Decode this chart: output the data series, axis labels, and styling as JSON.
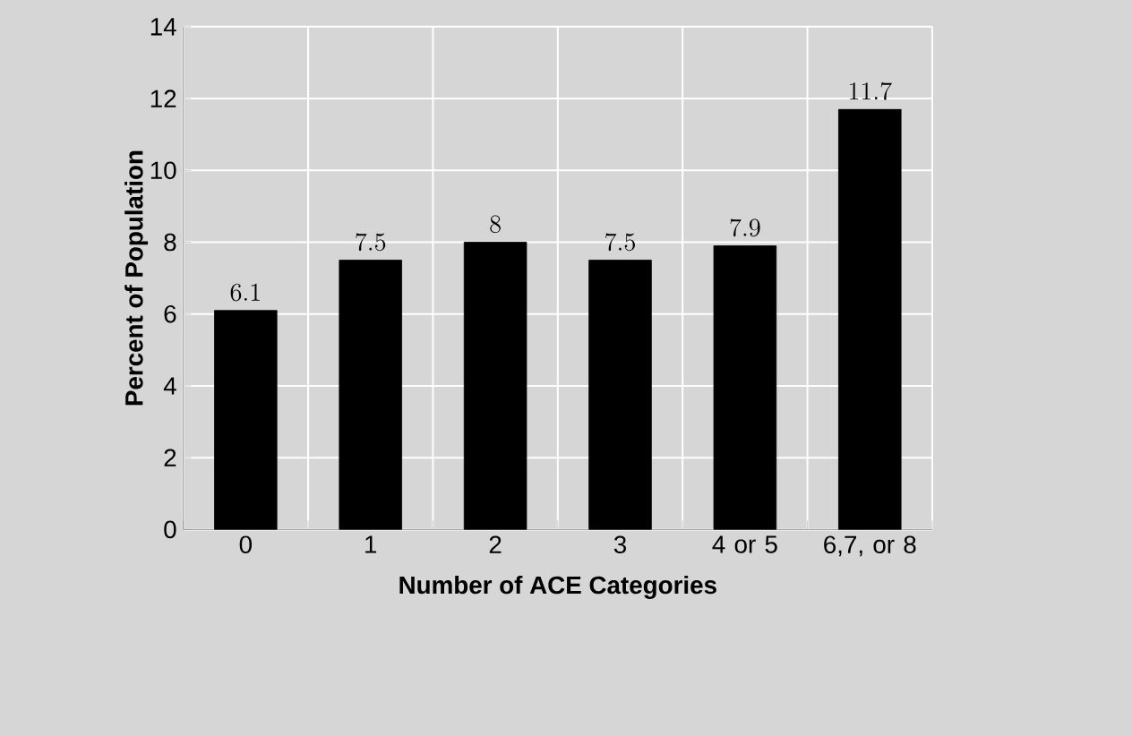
{
  "chart_data": {
    "type": "bar",
    "xlabel": "Number of ACE Categories",
    "ylabel": "Percent of Population",
    "categories": [
      "0",
      "1",
      "2",
      "3",
      "4 or 5",
      "6,7, or 8"
    ],
    "values": [
      6.1,
      7.5,
      8,
      7.5,
      7.9,
      11.7
    ],
    "color": "#000000",
    "ylim": [
      0,
      14
    ],
    "yticks": [
      0,
      2,
      4,
      6,
      8,
      10,
      12,
      14
    ],
    "grid": true,
    "data_labels": true
  }
}
